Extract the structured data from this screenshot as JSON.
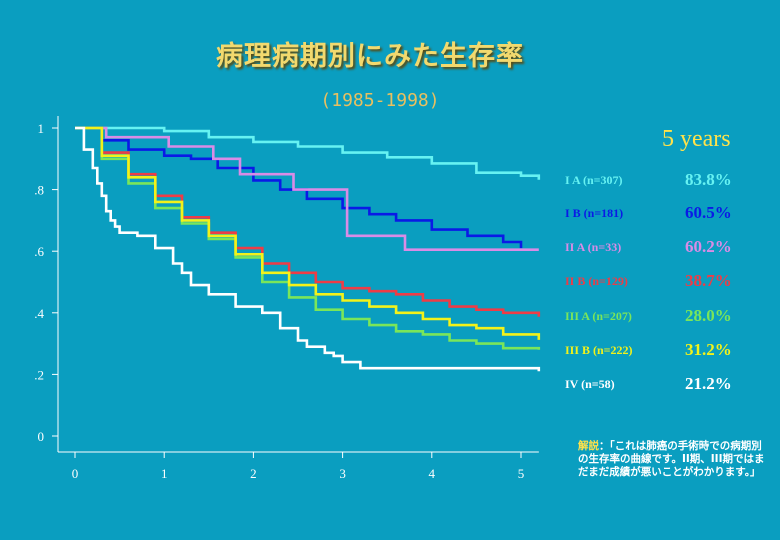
{
  "header": {
    "title": "病理病期別にみた生存率",
    "subtitle": "(1985-1998)"
  },
  "legend": {
    "heading": "5 years",
    "items": [
      {
        "label": "I A (n=307)",
        "pct": "83.8%",
        "color": "#66f2f2"
      },
      {
        "label": "I B (n=181)",
        "pct": "60.5%",
        "color": "#0a1ae6"
      },
      {
        "label": "II A (n=33)",
        "pct": "60.2%",
        "color": "#d98ce6"
      },
      {
        "label": "II B (n=129)",
        "pct": "38.7%",
        "color": "#ee3c46"
      },
      {
        "label": "III A (n=207)",
        "pct": "28.0%",
        "color": "#7ae65a"
      },
      {
        "label": "III B (n=222)",
        "pct": "31.2%",
        "color": "#f2f21a"
      },
      {
        "label": "IV  (n=58)",
        "pct": "21.2%",
        "color": "#ffffff"
      }
    ]
  },
  "note": {
    "label": "解説",
    "text": "：「これは肺癌の手術時での病期別の生存率の曲線です。II期、III期ではまだまだ成績が悪いことがわかります。」"
  },
  "chart_data": {
    "type": "line",
    "xlim": [
      0,
      5.2
    ],
    "ylim": [
      0,
      1
    ],
    "xticks": [
      0,
      1,
      2,
      3,
      4,
      5
    ],
    "xtick_labels": [
      "0",
      "1",
      "2",
      "3",
      "4",
      "5"
    ],
    "yticks": [
      0,
      0.2,
      0.4,
      0.6,
      0.8,
      1
    ],
    "ytick_labels": [
      "0",
      ".2",
      ".4",
      ".6",
      ".8",
      "1"
    ],
    "grid": false,
    "series": [
      {
        "name": "I A (n=307)",
        "color": "#66f2f2",
        "x": [
          0,
          0.5,
          1.0,
          1.5,
          2.0,
          2.5,
          3.0,
          3.5,
          4.0,
          4.5,
          5.0,
          5.2
        ],
        "y": [
          1.0,
          1.0,
          0.99,
          0.97,
          0.955,
          0.94,
          0.92,
          0.905,
          0.885,
          0.855,
          0.845,
          0.832
        ]
      },
      {
        "name": "I B (n=181)",
        "color": "#0a1ae6",
        "x": [
          0,
          0.3,
          0.6,
          1.0,
          1.3,
          1.6,
          2.0,
          2.3,
          2.6,
          3.0,
          3.3,
          3.6,
          4.0,
          4.4,
          4.8,
          5.0
        ],
        "y": [
          1.0,
          0.96,
          0.93,
          0.91,
          0.9,
          0.87,
          0.83,
          0.8,
          0.77,
          0.74,
          0.72,
          0.7,
          0.67,
          0.65,
          0.63,
          0.61
        ]
      },
      {
        "name": "II A (n=33)",
        "color": "#d98ce6",
        "x": [
          0,
          0.3,
          0.35,
          1.0,
          1.05,
          1.5,
          1.55,
          1.8,
          1.85,
          2.4,
          2.45,
          3.0,
          3.05,
          3.65,
          3.7,
          5.2
        ],
        "y": [
          1.0,
          1.0,
          0.97,
          0.97,
          0.94,
          0.94,
          0.9,
          0.9,
          0.85,
          0.85,
          0.8,
          0.8,
          0.65,
          0.65,
          0.605,
          0.605
        ]
      },
      {
        "name": "II B (n=129)",
        "color": "#ee3c46",
        "x": [
          0,
          0.3,
          0.6,
          0.9,
          1.2,
          1.5,
          1.8,
          2.1,
          2.4,
          2.7,
          3.0,
          3.3,
          3.6,
          3.9,
          4.2,
          4.5,
          4.8,
          5.2
        ],
        "y": [
          1.0,
          0.92,
          0.85,
          0.78,
          0.71,
          0.66,
          0.61,
          0.56,
          0.53,
          0.5,
          0.48,
          0.47,
          0.46,
          0.44,
          0.42,
          0.41,
          0.4,
          0.387
        ]
      },
      {
        "name": "III A (n=207)",
        "color": "#7ae65a",
        "x": [
          0,
          0.3,
          0.6,
          0.9,
          1.2,
          1.5,
          1.8,
          2.1,
          2.4,
          2.7,
          3.0,
          3.3,
          3.6,
          3.9,
          4.2,
          4.5,
          4.8,
          5.2
        ],
        "y": [
          1.0,
          0.9,
          0.82,
          0.74,
          0.69,
          0.64,
          0.58,
          0.5,
          0.45,
          0.41,
          0.38,
          0.36,
          0.34,
          0.33,
          0.31,
          0.3,
          0.285,
          0.28
        ]
      },
      {
        "name": "III B (n=222)",
        "color": "#f2f21a",
        "x": [
          0,
          0.3,
          0.6,
          0.9,
          1.2,
          1.5,
          1.8,
          2.1,
          2.4,
          2.7,
          3.0,
          3.3,
          3.6,
          3.9,
          4.2,
          4.5,
          4.8,
          5.2
        ],
        "y": [
          1.0,
          0.91,
          0.84,
          0.76,
          0.7,
          0.65,
          0.59,
          0.53,
          0.49,
          0.46,
          0.44,
          0.42,
          0.4,
          0.38,
          0.36,
          0.35,
          0.33,
          0.312
        ]
      },
      {
        "name": "IV  (n=58)",
        "color": "#ffffff",
        "x": [
          0,
          0.1,
          0.2,
          0.25,
          0.3,
          0.35,
          0.4,
          0.45,
          0.5,
          0.7,
          0.9,
          1.1,
          1.2,
          1.3,
          1.5,
          1.8,
          2.1,
          2.3,
          2.5,
          2.6,
          2.8,
          2.9,
          3.0,
          3.2,
          5.2
        ],
        "y": [
          1.0,
          0.93,
          0.87,
          0.82,
          0.78,
          0.73,
          0.7,
          0.68,
          0.66,
          0.65,
          0.61,
          0.56,
          0.53,
          0.49,
          0.46,
          0.42,
          0.4,
          0.35,
          0.31,
          0.29,
          0.27,
          0.26,
          0.24,
          0.22,
          0.21
        ]
      }
    ]
  }
}
